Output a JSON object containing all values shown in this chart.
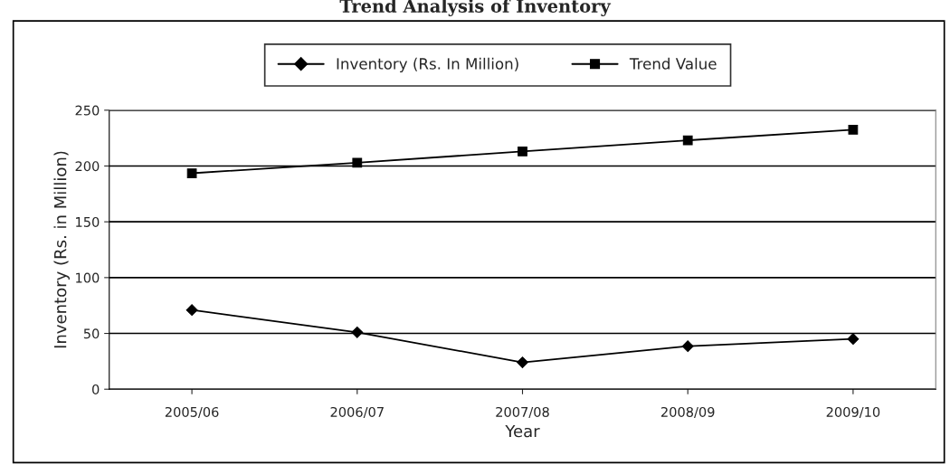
{
  "chart_data": {
    "type": "line",
    "title": "Trend Analysis of Inventory",
    "xlabel": "Year",
    "ylabel": "Inventory (Rs. in Million)",
    "categories": [
      "2005/06",
      "2006/07",
      "2007/08",
      "2008/09",
      "2009/10"
    ],
    "series": [
      {
        "name": "Inventory (Rs. In Million)",
        "color": "#000000",
        "marker": "diamond",
        "values": [
          71,
          51,
          24,
          38.5,
          45
        ]
      },
      {
        "name": "Trend Value",
        "color": "#000000",
        "marker": "square",
        "values": [
          193.5,
          203,
          213,
          223,
          232.5
        ]
      }
    ],
    "ylim": [
      0,
      250
    ],
    "yticks": [
      0,
      50,
      100,
      150,
      200,
      250
    ],
    "grid": "y",
    "legend": "top",
    "line_style": "solid"
  }
}
